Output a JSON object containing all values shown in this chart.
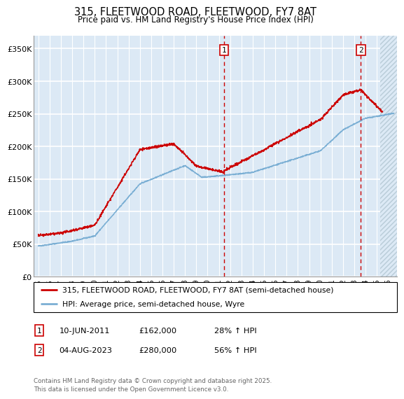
{
  "title": "315, FLEETWOOD ROAD, FLEETWOOD, FY7 8AT",
  "subtitle": "Price paid vs. HM Land Registry's House Price Index (HPI)",
  "ylabel_ticks": [
    "£0",
    "£50K",
    "£100K",
    "£150K",
    "£200K",
    "£250K",
    "£300K",
    "£350K"
  ],
  "ytick_vals": [
    0,
    50000,
    100000,
    150000,
    200000,
    250000,
    300000,
    350000
  ],
  "ylim": [
    0,
    370000
  ],
  "xlim_start": 1994.6,
  "xlim_end": 2026.8,
  "sale1_date": 2011.44,
  "sale1_price": 162000,
  "sale1_label": "1",
  "sale2_date": 2023.58,
  "sale2_price": 280000,
  "sale2_label": "2",
  "legend_line1": "315, FLEETWOOD ROAD, FLEETWOOD, FY7 8AT (semi-detached house)",
  "legend_line2": "HPI: Average price, semi-detached house, Wyre",
  "footer": "Contains HM Land Registry data © Crown copyright and database right 2025.\nThis data is licensed under the Open Government Licence v3.0.",
  "bg_color": "#dce9f5",
  "red_color": "#cc0000",
  "blue_color": "#7bafd4",
  "grid_color": "#ffffff",
  "hatch_future_start": 2025.3
}
